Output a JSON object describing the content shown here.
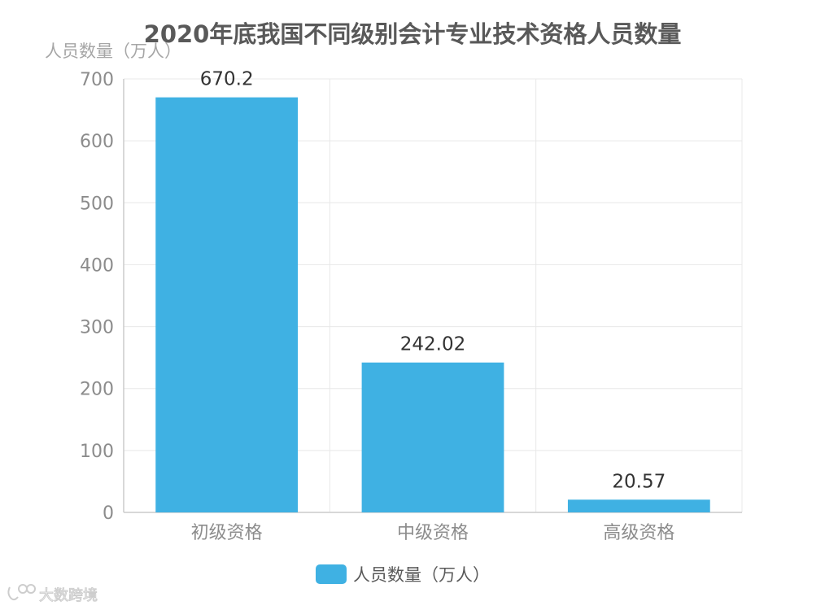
{
  "chart_data": {
    "type": "bar",
    "title": "2020年底我国不同级别会计专业技术资格人员数量",
    "ylabel": "人员数量（万人）",
    "xlabel": "",
    "categories": [
      "初级资格",
      "中级资格",
      "高级资格"
    ],
    "series": [
      {
        "name": "人员数量（万人）",
        "values": [
          670.2,
          242.02,
          20.57
        ],
        "data_labels": [
          "670.2",
          "242.02",
          "20.57"
        ],
        "color": "#3fb1e3"
      }
    ],
    "ylim": [
      0,
      700
    ],
    "yticks": [
      0,
      100,
      200,
      300,
      400,
      500,
      600,
      700
    ],
    "grid": true,
    "legend_position": "bottom"
  },
  "watermark": {
    "text": "大数跨境",
    "icon": "logo-icon"
  },
  "colors": {
    "bar": "#3fb1e3",
    "grid": "#e8e8e8",
    "axis": "#cccccc"
  }
}
